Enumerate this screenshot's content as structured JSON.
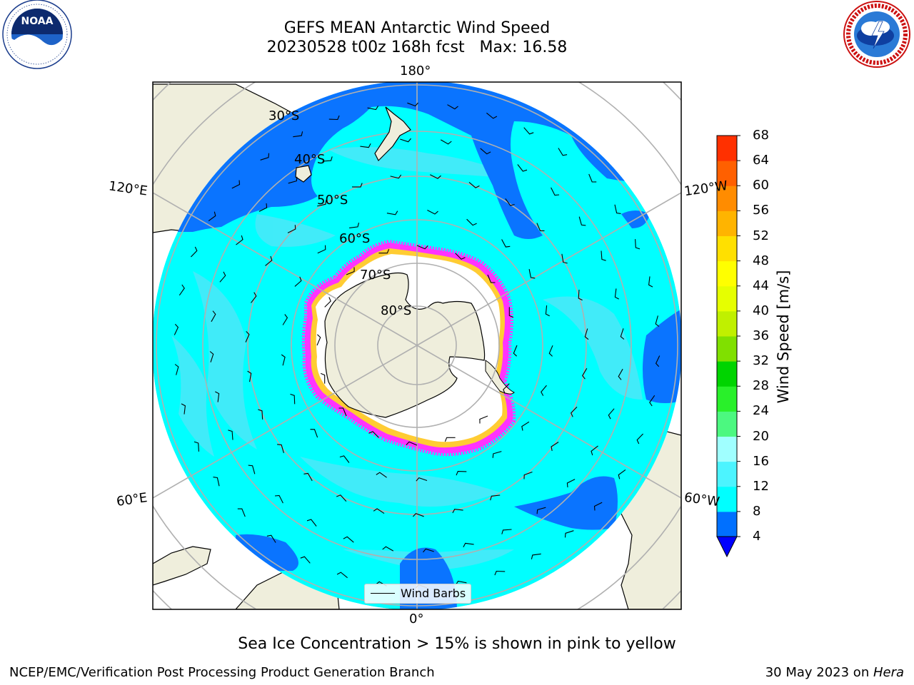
{
  "title": {
    "line1": "GEFS MEAN Antarctic Wind Speed",
    "line2": "20230528 t00z 168h fcst   Max: 16.58"
  },
  "map": {
    "projection": "South polar stereographic",
    "longitude_labels": {
      "top": "180°",
      "bottom": "0°",
      "upper_left": "120°E",
      "upper_right": "120°W",
      "lower_left": "60°E",
      "lower_right": "60°W"
    },
    "latitude_labels": [
      "30°S",
      "40°S",
      "50°S",
      "60°S",
      "70°S",
      "80°S"
    ],
    "legend_label": "Wind Barbs",
    "colors": {
      "ocean_blue": "#0070ff",
      "ocean_cyan": "#00ffff",
      "ocean_light": "#4ce8f8",
      "land": "#efeedc",
      "ice": "#ffffff",
      "ice_edge_pink": "#ff33ff",
      "ice_edge_yellow": "#ffcc33",
      "grid": "#b0b0b0"
    }
  },
  "colorbar": {
    "label": "Wind Speed [m/s]",
    "ticks": [
      "4",
      "8",
      "12",
      "16",
      "20",
      "24",
      "28",
      "32",
      "36",
      "40",
      "44",
      "48",
      "52",
      "56",
      "60",
      "64",
      "68"
    ],
    "colors": [
      "#0070ff",
      "#00ffff",
      "#4cf4ff",
      "#a0ffff",
      "#4cf880",
      "#29f02a",
      "#00d400",
      "#80e000",
      "#c0f000",
      "#e6ff00",
      "#ffff00",
      "#ffe000",
      "#ffb400",
      "#ff8c00",
      "#ff6000",
      "#ff3000",
      "#ff0000"
    ],
    "extend_color": "#0000ff"
  },
  "caption": "Sea Ice Concentration > 15% is shown in pink to yellow",
  "footer": {
    "left": "NCEP/EMC/Verification Post Processing Product Generation Branch",
    "right_date": "30 May 2023 on ",
    "right_machine": "Hera"
  },
  "logos": {
    "left_text": "NOAA",
    "right_text": "NATIONAL WEATHER SERVICE"
  }
}
